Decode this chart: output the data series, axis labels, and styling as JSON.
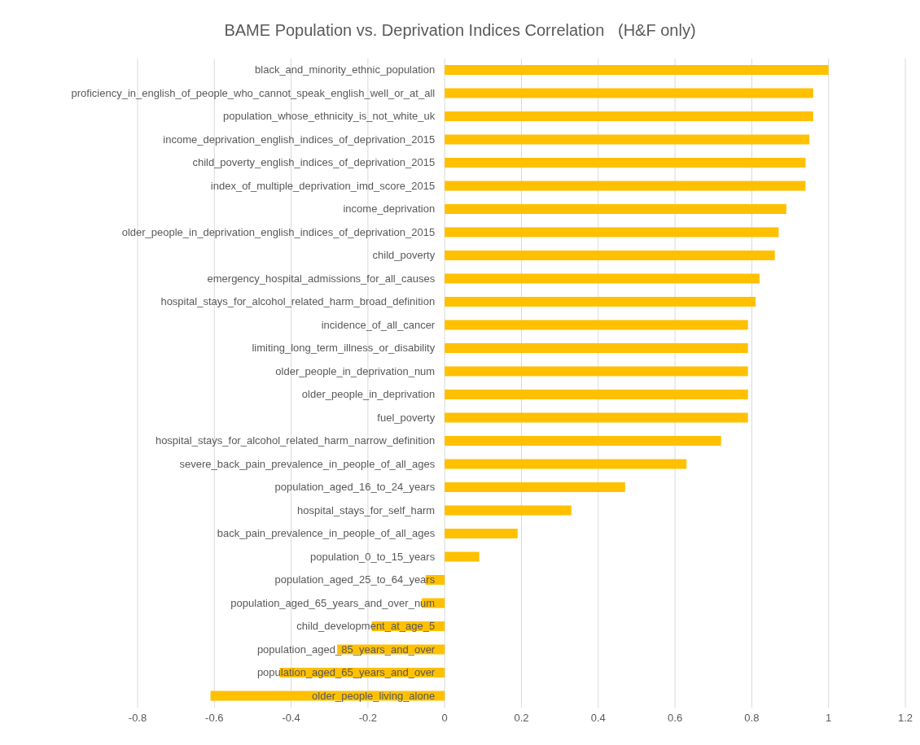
{
  "chart_data": {
    "type": "bar",
    "orientation": "horizontal",
    "title": "BAME Population vs. Deprivation Indices Correlation   (H&F only)",
    "categories": [
      "black_and_minority_ethnic_population",
      "proficiency_in_english_of_people_who_cannot_speak_english_well_or_at_all",
      "population_whose_ethnicity_is_not_white_uk",
      "income_deprivation_english_indices_of_deprivation_2015",
      "child_poverty_english_indices_of_deprivation_2015",
      "index_of_multiple_deprivation_imd_score_2015",
      "income_deprivation",
      "older_people_in_deprivation_english_indices_of_deprivation_2015",
      "child_poverty",
      "emergency_hospital_admissions_for_all_causes",
      "hospital_stays_for_alcohol_related_harm_broad_definition",
      "incidence_of_all_cancer",
      "limiting_long_term_illness_or_disability",
      "older_people_in_deprivation_num",
      "older_people_in_deprivation",
      "fuel_poverty",
      "hospital_stays_for_alcohol_related_harm_narrow_definition",
      "severe_back_pain_prevalence_in_people_of_all_ages",
      "population_aged_16_to_24_years",
      "hospital_stays_for_self_harm",
      "back_pain_prevalence_in_people_of_all_ages",
      "population_0_to_15_years",
      "population_aged_25_to_64_years",
      "population_aged_65_years_and_over_num",
      "child_development_at_age_5",
      "population_aged_85_years_and_over",
      "population_aged_65_years_and_over",
      "older_people_living_alone"
    ],
    "values": [
      1.0,
      0.96,
      0.96,
      0.95,
      0.94,
      0.94,
      0.89,
      0.87,
      0.86,
      0.82,
      0.81,
      0.79,
      0.79,
      0.79,
      0.79,
      0.79,
      0.72,
      0.63,
      0.47,
      0.33,
      0.19,
      0.09,
      -0.05,
      -0.06,
      -0.19,
      -0.28,
      -0.43,
      -0.61
    ],
    "color": "#ffc000",
    "xlim": [
      -0.8,
      1.2
    ],
    "xticks": [
      -0.8,
      -0.6,
      -0.4,
      -0.2,
      0,
      0.2,
      0.4,
      0.6,
      0.8,
      1,
      1.2
    ],
    "grid": "x",
    "legend": false
  }
}
